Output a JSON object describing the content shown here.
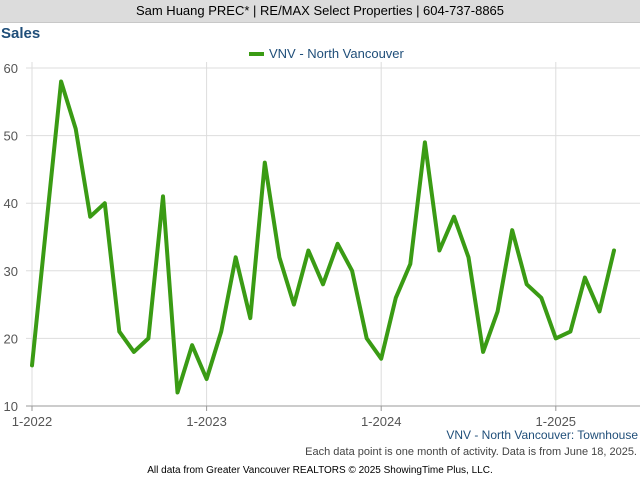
{
  "header": {
    "text": "Sam Huang PREC* | RE/MAX Select Properties | 604-737-8865"
  },
  "chart_data": {
    "type": "line",
    "title": "Sales",
    "xlabel": "",
    "ylabel": "",
    "ylim": [
      10,
      60
    ],
    "yticks": [
      10,
      20,
      30,
      40,
      50,
      60
    ],
    "x_tick_labels": [
      "1-2022",
      "1-2023",
      "1-2024",
      "1-2025"
    ],
    "x": [
      "2022-01",
      "2022-02",
      "2022-03",
      "2022-04",
      "2022-05",
      "2022-06",
      "2022-07",
      "2022-08",
      "2022-09",
      "2022-10",
      "2022-11",
      "2022-12",
      "2023-01",
      "2023-02",
      "2023-03",
      "2023-04",
      "2023-05",
      "2023-06",
      "2023-07",
      "2023-08",
      "2023-09",
      "2023-10",
      "2023-11",
      "2023-12",
      "2024-01",
      "2024-02",
      "2024-03",
      "2024-04",
      "2024-05",
      "2024-06",
      "2024-07",
      "2024-08",
      "2024-09",
      "2024-10",
      "2024-11",
      "2024-12",
      "2025-01",
      "2025-02",
      "2025-03",
      "2025-04",
      "2025-05"
    ],
    "series": [
      {
        "name": "VNV - North Vancouver",
        "color": "#3a9b14",
        "values": [
          16,
          37,
          58,
          51,
          38,
          40,
          21,
          18,
          20,
          41,
          12,
          19,
          14,
          21,
          32,
          23,
          46,
          32,
          25,
          33,
          28,
          34,
          30,
          20,
          17,
          26,
          31,
          49,
          33,
          38,
          32,
          18,
          24,
          36,
          28,
          26,
          20,
          21,
          29,
          24,
          33
        ]
      }
    ],
    "grid": true,
    "legend_position": "top-center",
    "subtitle": "VNV - North Vancouver: Townhouse",
    "note": "Each data point is one month of activity. Data is from June 18, 2025."
  },
  "footer": {
    "text": "All data from Greater Vancouver REALTORS © 2025 ShowingTime Plus, LLC."
  }
}
